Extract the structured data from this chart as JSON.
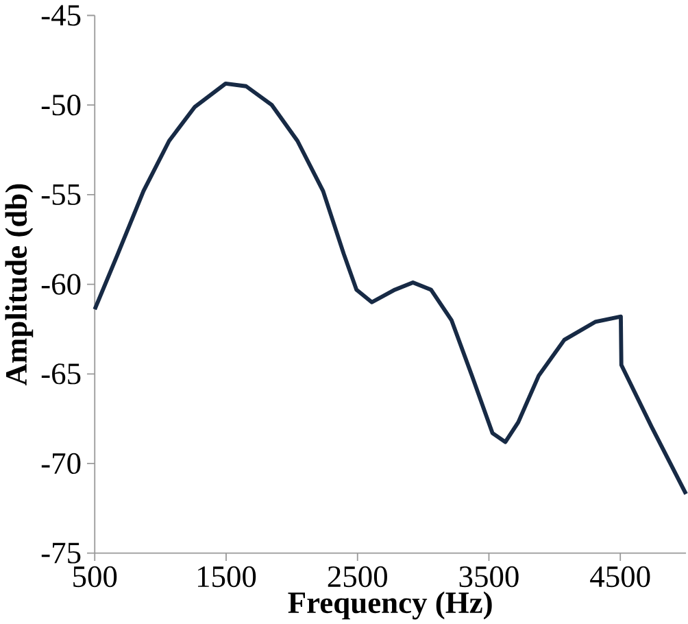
{
  "chart_data": {
    "type": "line",
    "xlabel": "Frequency (Hz)",
    "ylabel": "Amplitude (db)",
    "x": [
      500,
      676,
      871,
      1066,
      1262,
      1496,
      1652,
      1848,
      2043,
      2238,
      2395,
      2492,
      2609,
      2785,
      2922,
      3059,
      3215,
      3371,
      3527,
      3625,
      3723,
      3879,
      4074,
      4309,
      4504,
      4508,
      4738,
      5000
    ],
    "series": [
      {
        "color": "#172a45",
        "values": [
          -61.4,
          -58.3,
          -54.8,
          -52.0,
          -50.1,
          -48.8,
          -48.95,
          -50.0,
          -52.0,
          -54.8,
          -58.3,
          -60.3,
          -61.0,
          -60.3,
          -59.9,
          -60.3,
          -62.0,
          -65.1,
          -68.3,
          -68.8,
          -67.7,
          -65.1,
          -63.1,
          -62.1,
          -61.8,
          -64.5,
          -67.95,
          -71.7
        ]
      }
    ],
    "xlim": [
      500,
      5000
    ],
    "ylim": [
      -75,
      -45
    ],
    "xticks": [
      500,
      1500,
      2500,
      3500,
      4500
    ],
    "yticks": [
      -75,
      -70,
      -65,
      -60,
      -55,
      -50,
      -45
    ],
    "grid": false,
    "marker": "none",
    "line_style": "solid"
  }
}
